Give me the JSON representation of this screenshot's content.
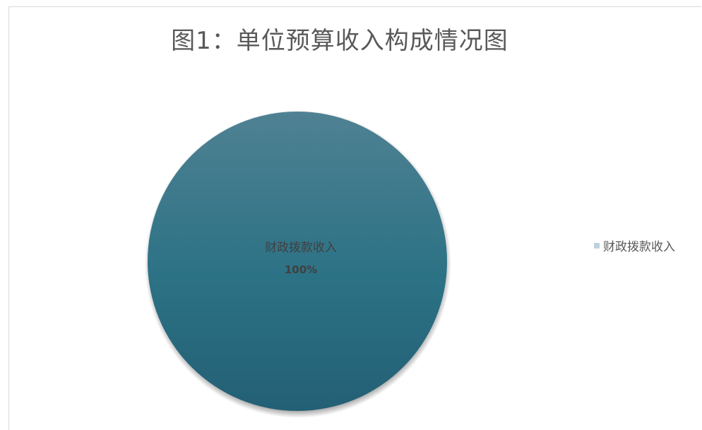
{
  "chart_data": {
    "type": "pie",
    "title": "图1：单位预算收入构成情况图",
    "slices": [
      {
        "label": "财政拨款收入",
        "value": 100,
        "display": "100%",
        "color": "#2f7488"
      }
    ],
    "legend": {
      "position": "right",
      "swatch_color": "#bcd3de"
    }
  }
}
